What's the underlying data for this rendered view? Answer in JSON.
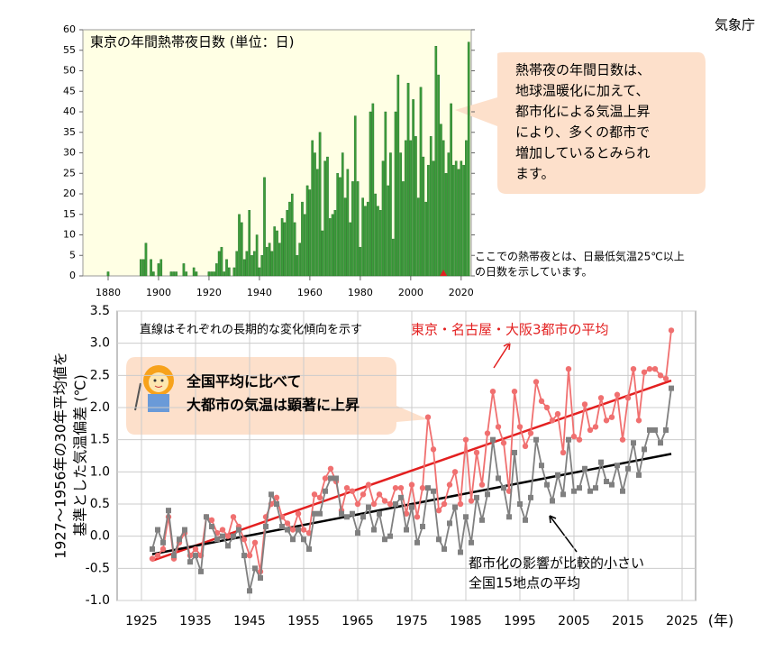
{
  "agency": "気象庁",
  "chart_data": [
    {
      "type": "bar",
      "title": "東京の年間熱帯夜日数 (単位：日)",
      "x": [
        1876,
        1877,
        1878,
        1879,
        1880,
        1881,
        1882,
        1883,
        1884,
        1885,
        1886,
        1887,
        1888,
        1889,
        1890,
        1891,
        1892,
        1893,
        1894,
        1895,
        1896,
        1897,
        1898,
        1899,
        1900,
        1901,
        1902,
        1903,
        1904,
        1905,
        1906,
        1907,
        1908,
        1909,
        1910,
        1911,
        1912,
        1913,
        1914,
        1915,
        1916,
        1917,
        1918,
        1919,
        1920,
        1921,
        1922,
        1923,
        1924,
        1925,
        1926,
        1927,
        1928,
        1929,
        1930,
        1931,
        1932,
        1933,
        1934,
        1935,
        1936,
        1937,
        1938,
        1939,
        1940,
        1941,
        1942,
        1943,
        1944,
        1945,
        1946,
        1947,
        1948,
        1949,
        1950,
        1951,
        1952,
        1953,
        1954,
        1955,
        1956,
        1957,
        1958,
        1959,
        1960,
        1961,
        1962,
        1963,
        1964,
        1965,
        1966,
        1967,
        1968,
        1969,
        1970,
        1971,
        1972,
        1973,
        1974,
        1975,
        1976,
        1977,
        1978,
        1979,
        1980,
        1981,
        1982,
        1983,
        1984,
        1985,
        1986,
        1987,
        1988,
        1989,
        1990,
        1991,
        1992,
        1993,
        1994,
        1995,
        1996,
        1997,
        1998,
        1999,
        2000,
        2001,
        2002,
        2003,
        2004,
        2005,
        2006,
        2007,
        2008,
        2009,
        2010,
        2011,
        2012,
        2013,
        2014,
        2015,
        2016,
        2017,
        2018,
        2019,
        2020,
        2021,
        2022,
        2023
      ],
      "values": [
        0,
        0,
        0,
        0,
        1,
        0,
        0,
        0,
        0,
        0,
        0,
        0,
        0,
        0,
        0,
        0,
        0,
        4,
        4,
        8,
        0,
        4,
        1,
        0,
        3,
        4,
        0,
        0,
        0,
        1,
        1,
        1,
        0,
        0,
        3,
        1,
        0,
        0,
        2,
        1,
        0,
        0,
        0,
        0,
        1,
        1,
        1,
        3,
        6,
        7,
        1,
        4,
        2,
        0,
        2,
        6,
        15,
        13,
        4,
        6,
        16,
        5,
        6,
        10,
        2,
        5,
        24,
        7,
        8,
        6,
        12,
        11,
        8,
        14,
        13,
        16,
        18,
        20,
        13,
        5,
        8,
        18,
        15,
        22,
        21,
        33,
        30,
        26,
        35,
        11,
        28,
        29,
        14,
        15,
        16,
        25,
        24,
        30,
        19,
        26,
        13,
        23,
        39,
        23,
        7,
        19,
        17,
        18,
        40,
        42,
        20,
        17,
        16,
        28,
        40,
        22,
        30,
        9,
        40,
        49,
        30,
        23,
        33,
        47,
        33,
        43,
        34,
        19,
        46,
        29,
        18,
        27,
        34,
        28,
        56,
        49,
        37,
        33,
        25,
        30,
        42,
        27,
        28,
        26,
        28,
        27,
        33,
        57
      ],
      "color": "#3c9c3c",
      "highlight_x": 2013,
      "highlight_color": "#e02020",
      "xlim": [
        1870,
        2024
      ],
      "xticks": [
        1880,
        1900,
        1920,
        1940,
        1960,
        1980,
        2000,
        2020
      ],
      "ylim": [
        0,
        60
      ],
      "yticks": [
        0,
        5,
        10,
        15,
        20,
        25,
        30,
        35,
        40,
        45,
        50,
        55,
        60
      ],
      "callout": [
        "熱帯夜の年間日数は、",
        "地球温暖化に加えて、",
        "都市化による気温上昇",
        "により、多くの都市で",
        "増加しているとみられ",
        "ます。"
      ],
      "note": [
        "ここでの熱帯夜とは、日最低気温25℃以上",
        "の日数を示しています。"
      ]
    },
    {
      "type": "line",
      "ylabel": [
        "1927～1956年の30年平均値を",
        "基準とした気温偏差 (℃)"
      ],
      "xlabel": "(年)",
      "note": "直線はそれぞれの長期的な変化傾向を示す",
      "callout": [
        "全国平均に比べて",
        "大都市の気温は顕著に上昇"
      ],
      "x": [
        1927,
        1928,
        1929,
        1930,
        1931,
        1932,
        1933,
        1934,
        1935,
        1936,
        1937,
        1938,
        1939,
        1940,
        1941,
        1942,
        1943,
        1944,
        1945,
        1946,
        1947,
        1948,
        1949,
        1950,
        1951,
        1952,
        1953,
        1954,
        1955,
        1956,
        1957,
        1958,
        1959,
        1960,
        1961,
        1962,
        1963,
        1964,
        1965,
        1966,
        1967,
        1968,
        1969,
        1970,
        1971,
        1972,
        1973,
        1974,
        1975,
        1976,
        1977,
        1978,
        1979,
        1980,
        1981,
        1982,
        1983,
        1984,
        1985,
        1986,
        1987,
        1988,
        1989,
        1990,
        1991,
        1992,
        1993,
        1994,
        1995,
        1996,
        1997,
        1998,
        1999,
        2000,
        2001,
        2002,
        2003,
        2004,
        2005,
        2006,
        2007,
        2008,
        2009,
        2010,
        2011,
        2012,
        2013,
        2014,
        2015,
        2016,
        2017,
        2018,
        2019,
        2020,
        2021,
        2022,
        2023
      ],
      "series": [
        {
          "name": "東京・名古屋・大阪3都市の平均",
          "color": "#f07070",
          "marker": "circle",
          "values": [
            -0.35,
            -0.3,
            -0.2,
            0.3,
            -0.35,
            -0.1,
            0.05,
            -0.3,
            -0.2,
            -0.3,
            0.3,
            0.25,
            0.05,
            0.1,
            0.0,
            0.3,
            0.15,
            -0.05,
            -0.3,
            -0.1,
            -0.55,
            0.3,
            0.5,
            0.6,
            0.3,
            0.2,
            0.1,
            0.35,
            0.1,
            0.05,
            0.65,
            0.6,
            0.9,
            1.05,
            0.85,
            0.4,
            0.75,
            0.7,
            0.5,
            0.65,
            0.8,
            0.5,
            0.65,
            0.55,
            0.5,
            0.75,
            0.75,
            0.35,
            0.8,
            0.3,
            0.75,
            1.85,
            1.35,
            0.4,
            0.5,
            0.8,
            1.0,
            0.5,
            1.5,
            0.55,
            1.3,
            0.8,
            1.6,
            2.25,
            1.7,
            1.45,
            0.7,
            2.25,
            1.7,
            1.4,
            1.6,
            2.4,
            2.1,
            2.0,
            1.8,
            1.9,
            1.3,
            2.6,
            1.55,
            1.5,
            2.05,
            1.65,
            1.7,
            2.15,
            1.8,
            1.85,
            2.2,
            1.5,
            2.15,
            2.6,
            1.8,
            2.55,
            2.6,
            2.6,
            2.5,
            2.45,
            3.2
          ]
        },
        {
          "name": [
            "都市化の影響が比較的小さい",
            "全国15地点の平均"
          ],
          "color": "#808080",
          "marker": "square",
          "values": [
            -0.2,
            0.1,
            -0.1,
            0.4,
            -0.3,
            -0.05,
            0.1,
            -0.4,
            -0.3,
            -0.55,
            0.3,
            0.15,
            -0.05,
            0.0,
            -0.15,
            0.0,
            0.1,
            -0.3,
            -0.85,
            -0.5,
            -0.65,
            0.15,
            0.65,
            0.5,
            0.15,
            0.1,
            -0.05,
            0.1,
            -0.05,
            -0.2,
            0.35,
            0.35,
            0.7,
            0.9,
            0.9,
            0.35,
            0.3,
            0.35,
            0.05,
            0.3,
            0.45,
            0.1,
            0.35,
            -0.05,
            0.0,
            0.5,
            0.6,
            0.1,
            0.45,
            -0.1,
            0.15,
            0.75,
            0.7,
            -0.05,
            -0.2,
            0.2,
            0.45,
            -0.25,
            0.3,
            -0.1,
            0.6,
            0.25,
            0.65,
            1.5,
            0.9,
            0.75,
            0.3,
            1.3,
            0.5,
            0.25,
            0.6,
            1.5,
            1.1,
            0.8,
            0.55,
            0.95,
            0.65,
            1.5,
            0.7,
            0.75,
            1.05,
            0.7,
            0.75,
            1.15,
            0.85,
            0.8,
            1.1,
            0.7,
            1.05,
            1.45,
            0.95,
            1.35,
            1.65,
            1.65,
            1.45,
            1.65,
            2.3
          ]
        }
      ],
      "trends": [
        {
          "color": "#e32020",
          "x": [
            1927,
            2023
          ],
          "values": [
            -0.38,
            2.42
          ]
        },
        {
          "color": "#000000",
          "x": [
            1927,
            2023
          ],
          "values": [
            -0.28,
            1.28
          ]
        }
      ],
      "xlim": [
        1920.5,
        2027.5
      ],
      "xticks": [
        1925,
        1935,
        1945,
        1955,
        1965,
        1975,
        1985,
        1995,
        2005,
        2015,
        2025
      ],
      "ylim": [
        -1,
        3.5
      ],
      "yticks": [
        {
          "value": -1,
          "label": "-1.0"
        },
        -0.5,
        {
          "value": 0,
          "label": "0.0"
        },
        0.5,
        {
          "value": 1,
          "label": "1.0"
        },
        1.5,
        {
          "value": 2,
          "label": "2.0"
        },
        2.5,
        {
          "value": 3,
          "label": "3.0"
        },
        3.5
      ],
      "grid": true
    }
  ]
}
